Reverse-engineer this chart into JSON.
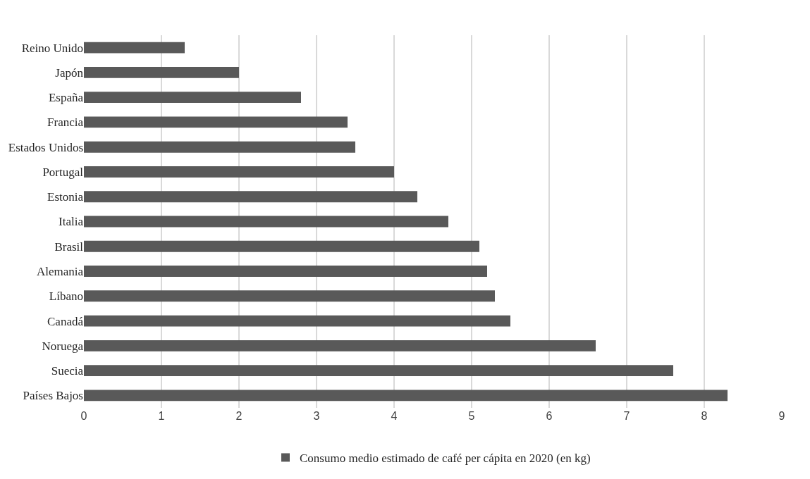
{
  "chart_data": {
    "type": "bar",
    "orientation": "horizontal",
    "categories": [
      "Reino Unido",
      "Japón",
      "España",
      "Francia",
      "Estados Unidos",
      "Portugal",
      "Estonia",
      "Italia",
      "Brasil",
      "Alemania",
      "Líbano",
      "Canadá",
      "Noruega",
      "Suecia",
      "Países Bajos"
    ],
    "series": [
      {
        "name": "Consumo medio estimado de café per cápita en 2020 (en kg)",
        "color": "#595959",
        "values": [
          1.3,
          2.0,
          2.8,
          3.4,
          3.5,
          4.0,
          4.3,
          4.7,
          5.1,
          5.2,
          5.3,
          5.5,
          6.6,
          7.6,
          8.3
        ]
      }
    ],
    "xlim": [
      0,
      9
    ],
    "xticks": [
      0,
      1,
      2,
      3,
      4,
      5,
      6,
      7,
      8,
      9
    ],
    "grid": "x",
    "legend": "bottom"
  }
}
